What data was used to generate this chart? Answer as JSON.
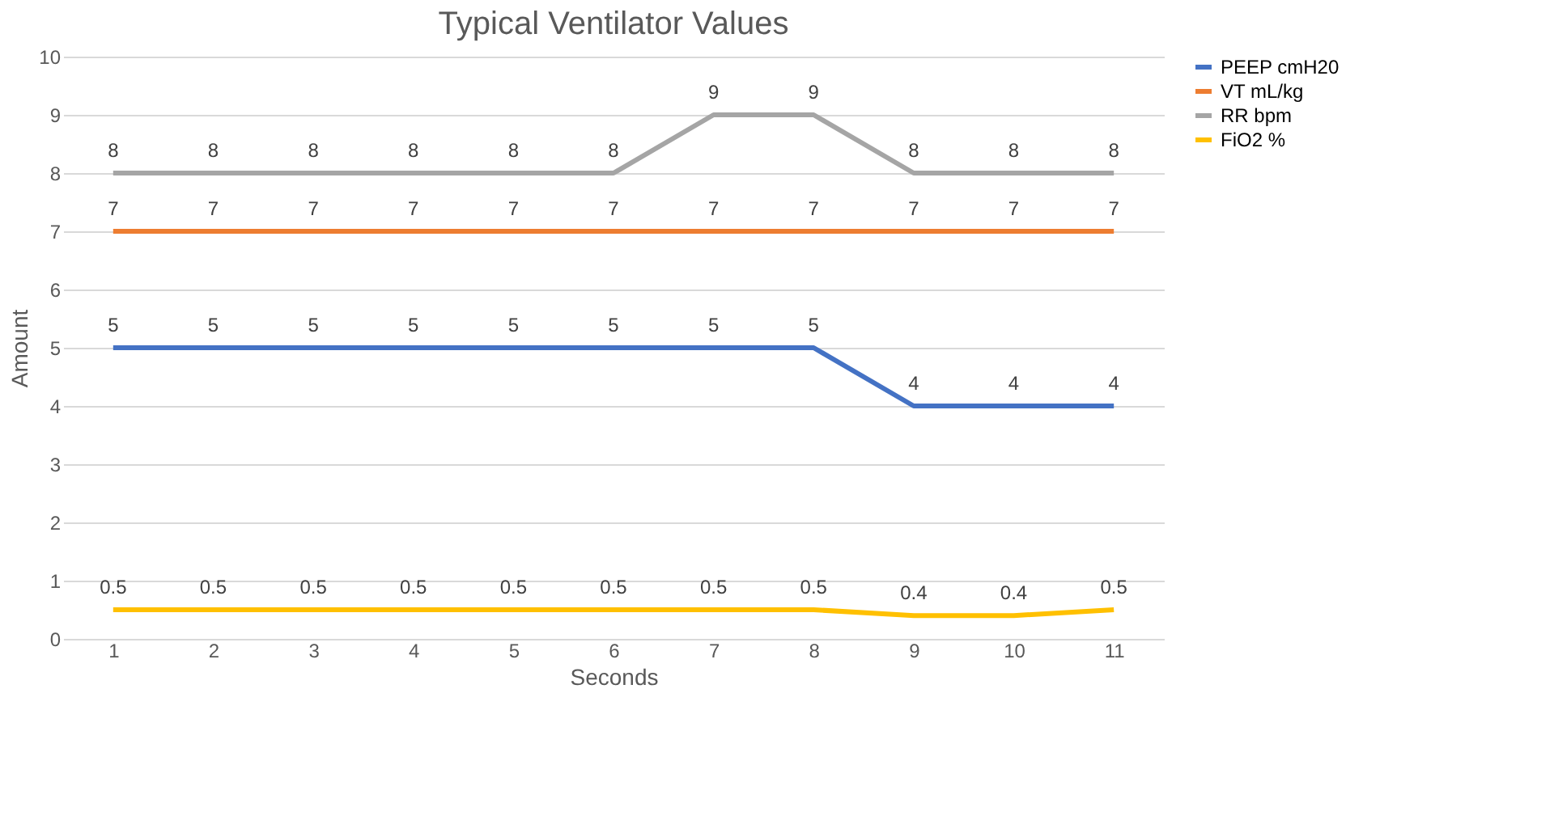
{
  "chart_data": {
    "type": "line",
    "title": "Typical Ventilator Values",
    "xlabel": "Seconds",
    "ylabel": "Amount",
    "categories": [
      "1",
      "2",
      "3",
      "4",
      "5",
      "6",
      "7",
      "8",
      "9",
      "10",
      "11"
    ],
    "series": [
      {
        "name": "PEEP cmH20",
        "color": "#4472c4",
        "values": [
          5,
          5,
          5,
          5,
          5,
          5,
          5,
          5,
          4,
          4,
          4
        ]
      },
      {
        "name": "VT mL/kg",
        "color": "#ed7d31",
        "values": [
          7,
          7,
          7,
          7,
          7,
          7,
          7,
          7,
          7,
          7,
          7
        ]
      },
      {
        "name": "RR bpm",
        "color": "#a5a5a5",
        "values": [
          8,
          8,
          8,
          8,
          8,
          8,
          9,
          9,
          8,
          8,
          8
        ]
      },
      {
        "name": "FiO2 %",
        "color": "#ffc000",
        "values": [
          0.5,
          0.5,
          0.5,
          0.5,
          0.5,
          0.5,
          0.5,
          0.5,
          0.4,
          0.4,
          0.5
        ]
      }
    ],
    "ylim": [
      0,
      10
    ],
    "yticks": [
      0,
      1,
      2,
      3,
      4,
      5,
      6,
      7,
      8,
      9,
      10
    ],
    "grid": "y",
    "legend": "right",
    "data_labels": true,
    "line_style": "solid"
  }
}
